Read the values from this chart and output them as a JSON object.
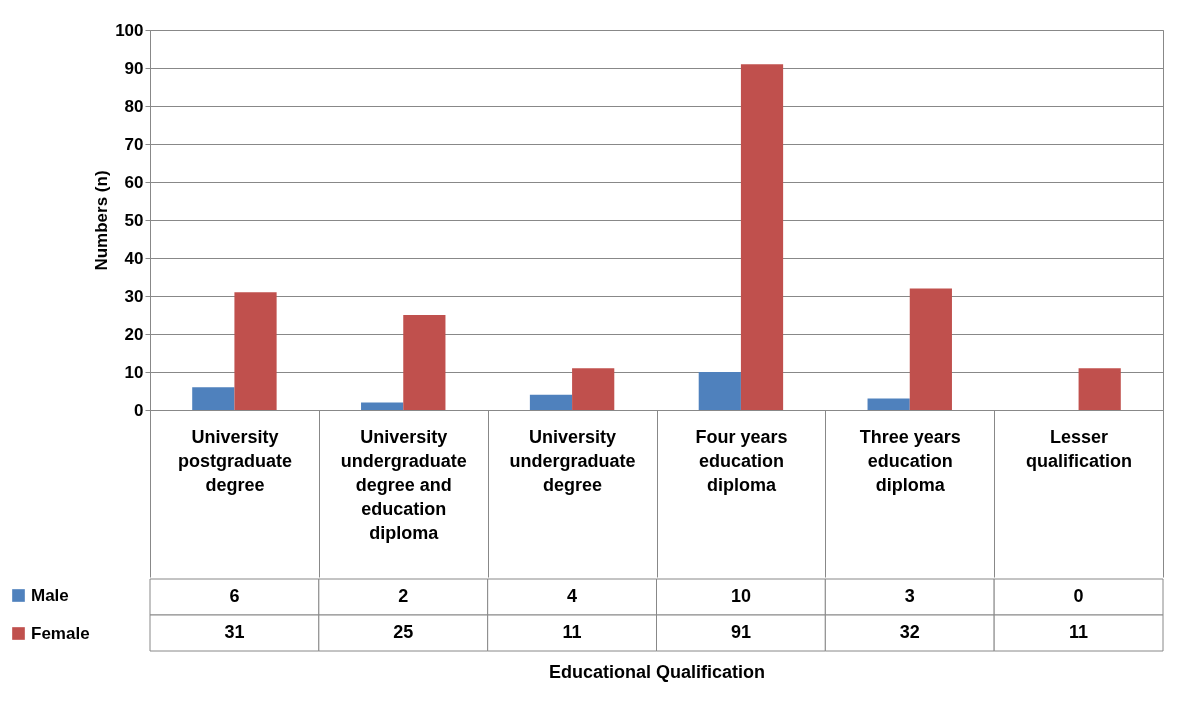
{
  "chart_data": {
    "type": "bar",
    "annotations": [
      "Educational Qualification"
    ],
    "ylabel": "Numbers (n)",
    "categories": [
      "University postgraduate degree",
      "University undergraduate degree and education diploma",
      "University undergraduate degree",
      "Four years education diploma",
      "Three years education diploma",
      "Lesser qualification"
    ],
    "series": [
      {
        "name": "Male",
        "color": "#4f81bd",
        "values": [
          6,
          2,
          4,
          10,
          3,
          0
        ]
      },
      {
        "name": "Female",
        "color": "#c0504d",
        "values": [
          31,
          25,
          11,
          91,
          32,
          11
        ]
      }
    ],
    "ylim": [
      0,
      100
    ],
    "yticks": [
      0,
      10,
      20,
      30,
      40,
      50,
      60,
      70,
      80,
      90,
      100
    ],
    "grid": "y",
    "legend": "bottom left",
    "data_labels": true
  }
}
